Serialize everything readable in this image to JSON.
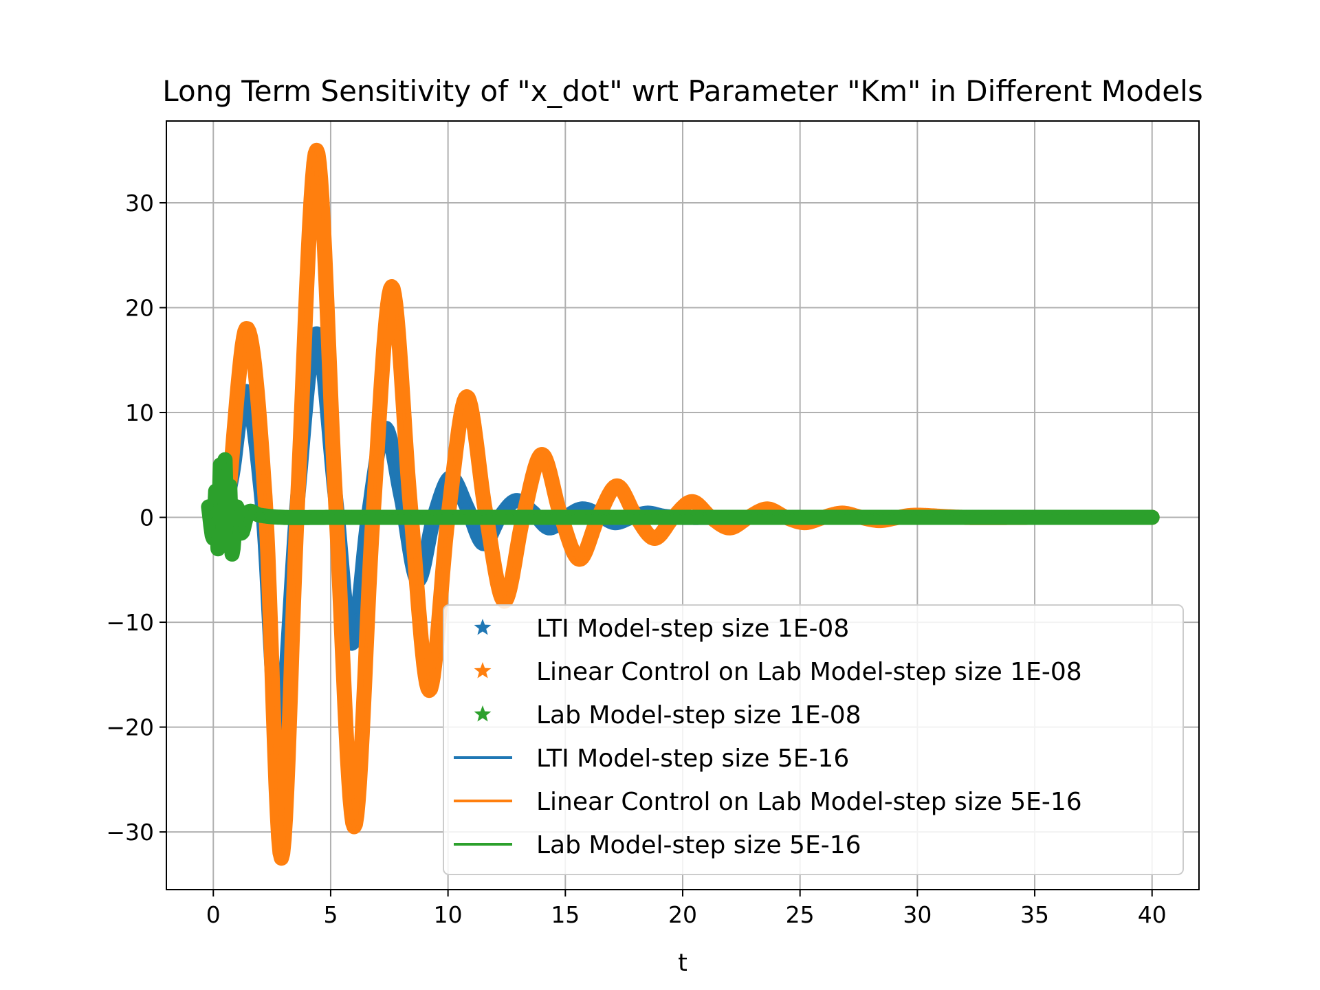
{
  "chart_data": {
    "type": "line",
    "title": "Long Term Sensitivity of \"x_dot\" wrt Parameter \"Km\" in Different Models",
    "xlabel": "t",
    "ylabel": "",
    "xlim": [
      -2,
      42
    ],
    "ylim": [
      -35.5,
      37.8
    ],
    "xticks": [
      0,
      5,
      10,
      15,
      20,
      25,
      30,
      35,
      40
    ],
    "yticks": [
      -30,
      -20,
      -10,
      0,
      10,
      20,
      30
    ],
    "x_tick_labels": [
      "0",
      "5",
      "10",
      "15",
      "20",
      "25",
      "30",
      "35",
      "40"
    ],
    "y_tick_labels": [
      "−30",
      "−20",
      "−10",
      "0",
      "10",
      "20",
      "30"
    ],
    "grid": true,
    "legend_position": "lower-right",
    "series": [
      {
        "name": "LTI Model-step size 1E-08",
        "style": "star",
        "color": "#1f77b4",
        "t": [
          0,
          0.3,
          0.8,
          1.4,
          2.1,
          2.8,
          3.6,
          4.4,
          5.2,
          5.9,
          6.6,
          7.3,
          8.0,
          8.7,
          9.4,
          10.1,
          10.8,
          11.5,
          12.2,
          12.9,
          13.6,
          14.3,
          15.0,
          15.7,
          16.4,
          17.1,
          17.8,
          18.5,
          19.2,
          20.0,
          22.0,
          25.0,
          30.0,
          35.0,
          40.0
        ],
        "values": [
          0,
          -1.0,
          4.0,
          12.0,
          1.0,
          -21.0,
          2.0,
          17.5,
          2.0,
          -12.0,
          0.0,
          8.5,
          2.0,
          -6.0,
          0.0,
          3.8,
          1.0,
          -2.5,
          0.0,
          1.6,
          0.5,
          -1.0,
          0.0,
          0.8,
          0.3,
          -0.5,
          0.0,
          0.4,
          0.1,
          0.0,
          0.0,
          0.0,
          0.0,
          0.0,
          0.0
        ]
      },
      {
        "name": "Linear Control on Lab Model-step size 1E-08",
        "style": "star",
        "color": "#ff7f0e",
        "t": [
          0,
          0.5,
          1.4,
          2.2,
          2.9,
          3.6,
          4.4,
          5.2,
          6.0,
          6.8,
          7.6,
          8.4,
          9.2,
          10.0,
          10.8,
          11.6,
          12.4,
          13.2,
          14.0,
          14.8,
          15.6,
          16.4,
          17.2,
          18.0,
          18.8,
          19.6,
          20.4,
          21.2,
          22.0,
          22.8,
          23.6,
          24.4,
          25.2,
          26.0,
          26.8,
          27.6,
          28.4,
          29.2,
          30.0,
          32.0,
          35.0,
          40.0
        ],
        "values": [
          0,
          -1.0,
          18.0,
          2.0,
          -32.5,
          2.0,
          35.0,
          2.0,
          -29.5,
          0.0,
          22.0,
          1.0,
          -16.5,
          0.0,
          11.5,
          0.5,
          -8.0,
          0.0,
          6.0,
          0.2,
          -4.0,
          0.0,
          3.0,
          0.1,
          -2.0,
          0.0,
          1.5,
          0.0,
          -1.0,
          0.0,
          0.8,
          0.0,
          -0.5,
          0.0,
          0.4,
          0.0,
          -0.3,
          0.0,
          0.2,
          0.0,
          0.0,
          0.0
        ]
      },
      {
        "name": "Lab Model-step size 1E-08",
        "style": "star",
        "color": "#2ca02c",
        "t": [
          -0.2,
          0.0,
          0.1,
          0.2,
          0.3,
          0.4,
          0.5,
          0.6,
          0.7,
          0.8,
          1.0,
          1.2,
          1.5,
          2.0,
          3.0,
          5.0,
          10.0,
          20.0,
          30.0,
          40.0
        ],
        "values": [
          1.0,
          -2.0,
          2.5,
          -3.0,
          5.0,
          0.0,
          5.5,
          -2.5,
          3.0,
          -3.5,
          1.0,
          -1.5,
          0.5,
          0.2,
          0.0,
          0.0,
          0.0,
          0.0,
          0.0,
          0.0
        ]
      },
      {
        "name": "LTI Model-step size 5E-16",
        "style": "line",
        "color": "#1f77b4",
        "t": [
          0,
          0.3,
          0.8,
          1.4,
          2.1,
          2.8,
          3.6,
          4.4,
          5.2,
          5.9,
          6.6,
          7.3,
          8.0,
          8.7,
          9.4,
          10.1,
          10.8,
          11.5,
          12.2,
          12.9,
          13.6,
          14.3,
          15.0,
          15.7,
          16.4,
          17.1,
          17.8,
          18.5,
          19.2,
          20.0,
          22.0,
          25.0,
          30.0,
          35.0,
          40.0
        ],
        "values": [
          0,
          -1.0,
          4.0,
          12.0,
          1.0,
          -21.0,
          2.0,
          17.5,
          2.0,
          -12.0,
          0.0,
          8.5,
          2.0,
          -6.0,
          0.0,
          3.8,
          1.0,
          -2.5,
          0.0,
          1.6,
          0.5,
          -1.0,
          0.0,
          0.8,
          0.3,
          -0.5,
          0.0,
          0.4,
          0.1,
          0.0,
          0.0,
          0.0,
          0.0,
          0.0,
          0.0
        ]
      },
      {
        "name": "Linear Control on Lab Model-step size 5E-16",
        "style": "line",
        "color": "#ff7f0e",
        "t": [
          0,
          0.5,
          1.4,
          2.2,
          2.9,
          3.6,
          4.4,
          5.2,
          6.0,
          6.8,
          7.6,
          8.4,
          9.2,
          10.0,
          10.8,
          11.6,
          12.4,
          13.2,
          14.0,
          14.8,
          15.6,
          16.4,
          17.2,
          18.0,
          18.8,
          19.6,
          20.4,
          21.2,
          22.0,
          22.8,
          23.6,
          24.4,
          25.2,
          26.0,
          26.8,
          27.6,
          28.4,
          29.2,
          30.0,
          32.0,
          35.0,
          40.0
        ],
        "values": [
          0,
          -1.0,
          18.0,
          2.0,
          -32.5,
          2.0,
          35.0,
          2.0,
          -29.5,
          0.0,
          22.0,
          1.0,
          -16.5,
          0.0,
          11.5,
          0.5,
          -8.0,
          0.0,
          6.0,
          0.2,
          -4.0,
          0.0,
          3.0,
          0.1,
          -2.0,
          0.0,
          1.5,
          0.0,
          -1.0,
          0.0,
          0.8,
          0.0,
          -0.5,
          0.0,
          0.4,
          0.0,
          -0.3,
          0.0,
          0.2,
          0.0,
          0.0,
          0.0
        ]
      },
      {
        "name": "Lab Model-step size 5E-16",
        "style": "line",
        "color": "#2ca02c",
        "t": [
          -0.2,
          0.0,
          0.1,
          0.2,
          0.3,
          0.4,
          0.5,
          0.6,
          0.7,
          0.8,
          1.0,
          1.2,
          1.5,
          2.0,
          3.0,
          5.0,
          10.0,
          20.0,
          30.0,
          40.0
        ],
        "values": [
          1.0,
          -2.0,
          2.5,
          -3.0,
          5.0,
          0.0,
          5.5,
          -2.5,
          3.0,
          -3.5,
          1.0,
          -1.5,
          0.5,
          0.2,
          0.0,
          0.0,
          0.0,
          0.0,
          0.0,
          0.0
        ]
      }
    ]
  }
}
